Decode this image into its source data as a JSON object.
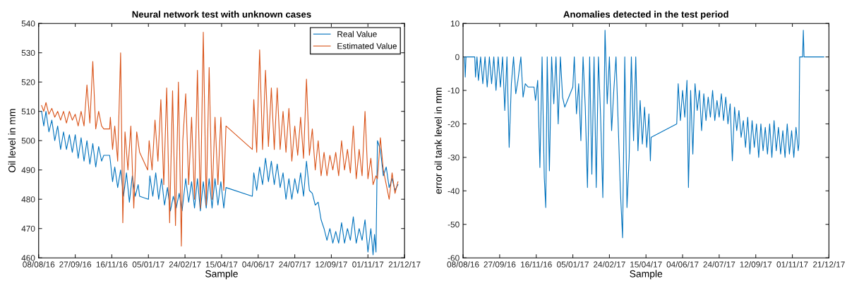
{
  "chart_data": [
    {
      "type": "line",
      "title": "Neural network test with unknown cases",
      "xlabel": "Sample",
      "ylabel": "Oil level in mm",
      "xlim": [
        "2016-08-08",
        "2017-12-21"
      ],
      "xticks": [
        {
          "value": "2016-08-08",
          "label": "08/08/16"
        },
        {
          "value": "2016-09-27",
          "label": "27/09/16"
        },
        {
          "value": "2016-11-16",
          "label": "16/11/16"
        },
        {
          "value": "2017-01-05",
          "label": "05/01/17"
        },
        {
          "value": "2017-02-24",
          "label": "24/02/17"
        },
        {
          "value": "2017-04-15",
          "label": "15/04/17"
        },
        {
          "value": "2017-06-04",
          "label": "04/06/17"
        },
        {
          "value": "2017-07-24",
          "label": "24/07/17"
        },
        {
          "value": "2017-09-12",
          "label": "12/09/17"
        },
        {
          "value": "2017-11-01",
          "label": "01/11/17"
        },
        {
          "value": "2017-12-21",
          "label": "21/12/17"
        }
      ],
      "ylim": [
        460,
        540
      ],
      "yticks": [
        460,
        470,
        480,
        490,
        500,
        510,
        520,
        530,
        540
      ],
      "legend": "top right",
      "grid": false,
      "series": [
        {
          "name": "Real Value",
          "color": "#0072bd",
          "x": [
            "2016-08-12",
            "2016-08-15",
            "2016-08-18",
            "2016-08-22",
            "2016-08-26",
            "2016-08-30",
            "2016-09-03",
            "2016-09-07",
            "2016-09-11",
            "2016-09-15",
            "2016-09-19",
            "2016-09-23",
            "2016-09-27",
            "2016-10-01",
            "2016-10-05",
            "2016-10-09",
            "2016-10-13",
            "2016-10-17",
            "2016-10-21",
            "2016-10-25",
            "2016-10-29",
            "2016-11-02",
            "2016-11-05",
            "2016-11-13",
            "2016-11-14",
            "2016-11-17",
            "2016-11-20",
            "2016-11-24",
            "2016-11-28",
            "2016-12-02",
            "2016-12-06",
            "2016-12-10",
            "2016-12-14",
            "2016-12-18",
            "2016-12-22",
            "2016-12-24",
            "2017-01-05",
            "2017-01-07",
            "2017-01-11",
            "2017-01-15",
            "2017-01-19",
            "2017-01-23",
            "2017-01-27",
            "2017-01-31",
            "2017-02-04",
            "2017-02-08",
            "2017-02-12",
            "2017-02-16",
            "2017-02-20",
            "2017-02-25",
            "2017-03-01",
            "2017-03-05",
            "2017-03-09",
            "2017-03-13",
            "2017-03-17",
            "2017-03-21",
            "2017-03-25",
            "2017-03-29",
            "2017-04-02",
            "2017-04-06",
            "2017-04-10",
            "2017-04-14",
            "2017-04-18",
            "2017-04-21",
            "2017-05-27",
            "2017-05-29",
            "2017-06-02",
            "2017-06-06",
            "2017-06-10",
            "2017-06-14",
            "2017-06-18",
            "2017-06-22",
            "2017-06-26",
            "2017-06-30",
            "2017-07-04",
            "2017-07-08",
            "2017-07-12",
            "2017-07-16",
            "2017-07-20",
            "2017-07-24",
            "2017-07-28",
            "2017-08-01",
            "2017-08-05",
            "2017-08-09",
            "2017-08-13",
            "2017-08-17",
            "2017-08-21",
            "2017-08-25",
            "2017-08-29",
            "2017-09-02",
            "2017-09-06",
            "2017-09-10",
            "2017-09-14",
            "2017-09-18",
            "2017-09-22",
            "2017-09-26",
            "2017-09-30",
            "2017-10-04",
            "2017-10-08",
            "2017-10-12",
            "2017-10-16",
            "2017-10-20",
            "2017-10-24",
            "2017-10-28",
            "2017-11-01",
            "2017-11-05",
            "2017-11-08",
            "2017-11-10",
            "2017-11-12",
            "2017-11-14",
            "2017-11-18",
            "2017-11-22",
            "2017-11-26",
            "2017-11-30",
            "2017-12-04",
            "2017-12-08",
            "2017-12-12"
          ],
          "values": [
            510,
            505,
            510,
            503,
            507,
            500,
            505,
            497,
            503,
            497,
            502,
            496,
            502,
            494,
            501,
            493,
            500,
            492,
            499,
            491,
            498,
            493,
            495,
            495,
            493,
            486,
            491,
            484,
            490,
            481,
            489,
            479,
            488,
            481,
            485,
            481,
            480,
            488,
            481,
            489,
            480,
            487,
            478,
            484,
            476,
            481,
            477,
            482,
            476,
            487,
            479,
            486,
            477,
            487,
            476,
            486,
            477,
            487,
            477,
            487,
            478,
            486,
            477,
            484,
            481,
            489,
            483,
            491,
            485,
            494,
            486,
            493,
            485,
            492,
            484,
            489,
            480,
            487,
            480,
            487,
            482,
            489,
            481,
            493,
            483,
            482,
            478,
            479,
            473,
            470,
            466,
            470,
            465,
            469,
            465,
            472,
            465,
            470,
            466,
            474,
            465,
            470,
            466,
            473,
            462,
            470,
            461,
            468,
            462,
            500,
            497,
            488,
            491,
            484,
            487,
            483,
            485
          ]
        },
        {
          "name": "Estimated Value",
          "color": "#d95319",
          "x": [
            "2016-08-12",
            "2016-08-15",
            "2016-08-18",
            "2016-08-22",
            "2016-08-26",
            "2016-08-30",
            "2016-09-03",
            "2016-09-07",
            "2016-09-11",
            "2016-09-15",
            "2016-09-19",
            "2016-09-23",
            "2016-09-27",
            "2016-10-01",
            "2016-10-05",
            "2016-10-09",
            "2016-10-13",
            "2016-10-17",
            "2016-10-21",
            "2016-10-25",
            "2016-10-29",
            "2016-11-02",
            "2016-11-05",
            "2016-11-13",
            "2016-11-14",
            "2016-11-17",
            "2016-11-20",
            "2016-11-24",
            "2016-11-28",
            "2016-12-01",
            "2016-12-04",
            "2016-12-08",
            "2016-12-12",
            "2016-12-16",
            "2016-12-20",
            "2016-12-24",
            "2017-01-04",
            "2017-01-06",
            "2017-01-10",
            "2017-01-14",
            "2017-01-18",
            "2017-01-22",
            "2017-01-26",
            "2017-01-30",
            "2017-02-03",
            "2017-02-07",
            "2017-02-11",
            "2017-02-15",
            "2017-02-19",
            "2017-02-21",
            "2017-02-25",
            "2017-03-01",
            "2017-03-05",
            "2017-03-09",
            "2017-03-13",
            "2017-03-17",
            "2017-03-21",
            "2017-03-25",
            "2017-03-29",
            "2017-04-02",
            "2017-04-06",
            "2017-04-10",
            "2017-04-14",
            "2017-04-18",
            "2017-04-21",
            "2017-05-27",
            "2017-05-29",
            "2017-06-02",
            "2017-06-06",
            "2017-06-10",
            "2017-06-14",
            "2017-06-18",
            "2017-06-22",
            "2017-06-26",
            "2017-06-30",
            "2017-07-04",
            "2017-07-08",
            "2017-07-12",
            "2017-07-16",
            "2017-07-20",
            "2017-07-24",
            "2017-07-28",
            "2017-08-01",
            "2017-08-05",
            "2017-08-09",
            "2017-08-13",
            "2017-08-17",
            "2017-08-21",
            "2017-08-25",
            "2017-08-29",
            "2017-09-02",
            "2017-09-06",
            "2017-09-10",
            "2017-09-14",
            "2017-09-18",
            "2017-09-22",
            "2017-09-26",
            "2017-09-30",
            "2017-10-04",
            "2017-10-08",
            "2017-10-12",
            "2017-10-16",
            "2017-10-20",
            "2017-10-24",
            "2017-10-28",
            "2017-11-01",
            "2017-11-05",
            "2017-11-08",
            "2017-11-12",
            "2017-11-14",
            "2017-11-18",
            "2017-11-22",
            "2017-11-26",
            "2017-11-30",
            "2017-12-04",
            "2017-12-08",
            "2017-12-12"
          ],
          "values": [
            512,
            510,
            513,
            509,
            511,
            508,
            510,
            507,
            510,
            506,
            510,
            507,
            509,
            505,
            510,
            505,
            519,
            506,
            527,
            504,
            510,
            505,
            504,
            504,
            508,
            497,
            505,
            493,
            530,
            472,
            503,
            490,
            505,
            477,
            503,
            496,
            490,
            500,
            490,
            507,
            493,
            514,
            485,
            518,
            472,
            517,
            471,
            520,
            464,
            500,
            516,
            485,
            508,
            480,
            524,
            477,
            537,
            478,
            525,
            480,
            508,
            485,
            508,
            483,
            505,
            497,
            514,
            496,
            531,
            497,
            524,
            498,
            518,
            497,
            518,
            497,
            510,
            496,
            511,
            493,
            505,
            495,
            508,
            494,
            521,
            495,
            504,
            490,
            500,
            488,
            496,
            488,
            495,
            490,
            496,
            488,
            500,
            490,
            497,
            489,
            505,
            487,
            497,
            488,
            510,
            487,
            494,
            485,
            488,
            487,
            501,
            490,
            485,
            480,
            489,
            482,
            486
          ]
        }
      ]
    },
    {
      "type": "line",
      "title": "Anomalies detected in the test period",
      "xlabel": "Sample",
      "ylabel": "error oil tank level in mm",
      "xlim": [
        "2016-08-08",
        "2017-12-21"
      ],
      "xticks": [
        {
          "value": "2016-08-08",
          "label": "08/08/16"
        },
        {
          "value": "2016-09-27",
          "label": "27/09/16"
        },
        {
          "value": "2016-11-16",
          "label": "16/11/16"
        },
        {
          "value": "2017-01-05",
          "label": "05/01/17"
        },
        {
          "value": "2017-02-24",
          "label": "24/02/17"
        },
        {
          "value": "2017-04-15",
          "label": "15/04/17"
        },
        {
          "value": "2017-06-04",
          "label": "04/06/17"
        },
        {
          "value": "2017-07-24",
          "label": "24/07/17"
        },
        {
          "value": "2017-09-12",
          "label": "12/09/17"
        },
        {
          "value": "2017-11-01",
          "label": "01/11/17"
        },
        {
          "value": "2017-12-21",
          "label": "21/12/17"
        }
      ],
      "ylim": [
        -60,
        10
      ],
      "yticks": [
        -60,
        -50,
        -40,
        -30,
        -20,
        -10,
        0,
        10
      ],
      "legend": false,
      "grid": false,
      "series": [
        {
          "color": "#0072bd",
          "x": [
            "2016-08-10",
            "2016-08-11",
            "2016-08-12",
            "2016-08-24",
            "2016-08-25",
            "2016-08-27",
            "2016-08-29",
            "2016-09-01",
            "2016-09-04",
            "2016-09-07",
            "2016-09-10",
            "2016-09-13",
            "2016-09-16",
            "2016-09-19",
            "2016-09-22",
            "2016-09-25",
            "2016-09-28",
            "2016-10-01",
            "2016-10-04",
            "2016-10-07",
            "2016-10-10",
            "2016-10-13",
            "2016-10-16",
            "2016-10-19",
            "2016-10-22",
            "2016-10-26",
            "2016-10-29",
            "2016-11-01",
            "2016-11-05",
            "2016-11-13",
            "2016-11-15",
            "2016-11-18",
            "2016-11-21",
            "2016-11-24",
            "2016-11-27",
            "2016-11-29",
            "2016-12-01",
            "2016-12-04",
            "2016-12-07",
            "2016-12-10",
            "2016-12-13",
            "2016-12-16",
            "2016-12-19",
            "2016-12-22",
            "2016-12-25",
            "2017-01-05",
            "2017-01-07",
            "2017-01-10",
            "2017-01-13",
            "2017-01-16",
            "2017-01-19",
            "2017-01-22",
            "2017-01-25",
            "2017-01-28",
            "2017-01-31",
            "2017-02-03",
            "2017-02-06",
            "2017-02-09",
            "2017-02-12",
            "2017-02-15",
            "2017-02-18",
            "2017-02-21",
            "2017-02-24",
            "2017-02-27",
            "2017-03-02",
            "2017-03-05",
            "2017-03-08",
            "2017-03-11",
            "2017-03-14",
            "2017-03-17",
            "2017-03-20",
            "2017-03-23",
            "2017-03-26",
            "2017-03-29",
            "2017-04-01",
            "2017-04-04",
            "2017-04-07",
            "2017-04-10",
            "2017-04-13",
            "2017-04-16",
            "2017-04-19",
            "2017-04-21",
            "2017-04-22",
            "2017-05-27",
            "2017-05-29",
            "2017-06-01",
            "2017-06-04",
            "2017-06-07",
            "2017-06-10",
            "2017-06-12",
            "2017-06-15",
            "2017-06-18",
            "2017-06-21",
            "2017-06-24",
            "2017-06-27",
            "2017-06-30",
            "2017-07-03",
            "2017-07-06",
            "2017-07-09",
            "2017-07-12",
            "2017-07-15",
            "2017-07-18",
            "2017-07-21",
            "2017-07-24",
            "2017-07-27",
            "2017-07-30",
            "2017-08-02",
            "2017-08-05",
            "2017-08-08",
            "2017-08-11",
            "2017-08-14",
            "2017-08-17",
            "2017-08-20",
            "2017-08-23",
            "2017-08-26",
            "2017-08-29",
            "2017-09-01",
            "2017-09-04",
            "2017-09-07",
            "2017-09-10",
            "2017-09-13",
            "2017-09-16",
            "2017-09-19",
            "2017-09-22",
            "2017-09-25",
            "2017-09-28",
            "2017-10-01",
            "2017-10-04",
            "2017-10-07",
            "2017-10-10",
            "2017-10-13",
            "2017-10-16",
            "2017-10-19",
            "2017-10-22",
            "2017-10-25",
            "2017-10-28",
            "2017-10-31",
            "2017-11-03",
            "2017-11-06",
            "2017-11-09",
            "2017-11-10",
            "2017-11-11",
            "2017-11-15",
            "2017-11-16",
            "2017-11-17",
            "2017-12-14"
          ],
          "values": [
            0,
            -6,
            0,
            0,
            -6,
            0,
            -7,
            0,
            -8,
            0,
            -9,
            0,
            -8,
            0,
            -10,
            0,
            -9,
            0,
            -16,
            0,
            -27,
            -8,
            0,
            -11,
            -7,
            0,
            -12,
            -8,
            -9,
            -9,
            -13,
            -7,
            -33,
            0,
            -36,
            -45,
            0,
            -34,
            0,
            -14,
            0,
            -20,
            0,
            -12,
            -15,
            -9,
            0,
            -17,
            -8,
            -25,
            0,
            -15,
            -39,
            0,
            -35,
            0,
            -39,
            0,
            -18,
            -42,
            8,
            -14,
            0,
            -22,
            -10,
            0,
            -20,
            -40,
            -54,
            0,
            -45,
            -30,
            0,
            -25,
            0,
            -28,
            -13,
            -26,
            -15,
            -27,
            -17,
            -31,
            -24,
            -20,
            -8,
            -19,
            -10,
            -18,
            -7,
            -39,
            -10,
            -29,
            -8,
            -16,
            -10,
            -22,
            -11,
            -19,
            -12,
            -18,
            -10,
            -19,
            -13,
            -18,
            -11,
            -19,
            -12,
            -20,
            -14,
            -31,
            -15,
            -22,
            -16,
            -24,
            -19,
            -27,
            -18,
            -29,
            -19,
            -27,
            -20,
            -30,
            -20,
            -28,
            -21,
            -29,
            -20,
            -30,
            -19,
            -28,
            -21,
            -29,
            -22,
            -30,
            -20,
            -29,
            -22,
            -30,
            -21,
            -28,
            -26,
            0,
            0,
            8,
            0,
            0
          ]
        }
      ]
    }
  ]
}
